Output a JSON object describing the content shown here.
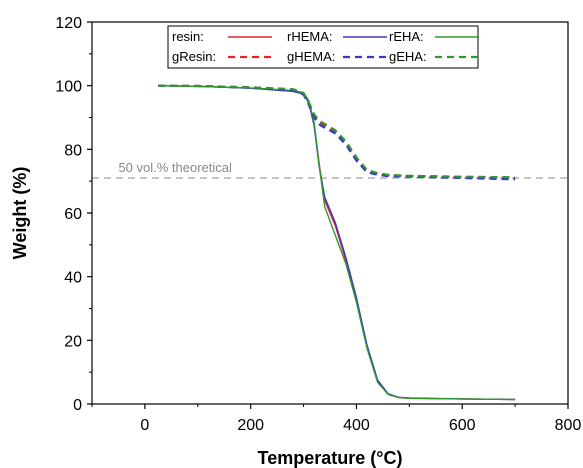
{
  "chart_data": {
    "type": "line",
    "title": "",
    "xlabel": "Temperature (°C)",
    "ylabel": "Weight (%)",
    "xlim": [
      -100,
      800
    ],
    "ylim": [
      0,
      120
    ],
    "x_ticks": [
      0,
      200,
      400,
      600,
      800
    ],
    "y_ticks": [
      0,
      20,
      40,
      60,
      80,
      100,
      120
    ],
    "grid": false,
    "legend_position": "top-center",
    "reference_line": {
      "y": 71,
      "label": "50 vol.% theoretical",
      "style": "dashed",
      "color": "#a0a0a0"
    },
    "series": [
      {
        "name": "resin:",
        "color": "#e8212a",
        "dash": "solid",
        "x": [
          25,
          100,
          200,
          280,
          300,
          310,
          320,
          330,
          340,
          360,
          380,
          400,
          420,
          440,
          460,
          480,
          500,
          600,
          700
        ],
        "y": [
          100,
          99.8,
          99.2,
          98.4,
          97.6,
          95,
          88,
          75,
          64,
          56,
          45,
          33,
          18,
          7,
          3,
          2,
          1.8,
          1.6,
          1.4
        ]
      },
      {
        "name": "rHEMA:",
        "color": "#3a37c8",
        "dash": "solid",
        "x": [
          25,
          100,
          200,
          280,
          300,
          310,
          320,
          330,
          340,
          360,
          380,
          400,
          420,
          440,
          460,
          480,
          500,
          600,
          700
        ],
        "y": [
          100,
          99.8,
          99.2,
          98.2,
          97.4,
          94.6,
          87.5,
          74,
          65,
          57,
          46,
          33.5,
          18.5,
          7.5,
          3.2,
          2.1,
          1.9,
          1.6,
          1.4
        ]
      },
      {
        "name": "rEHA:",
        "color": "#2e9a2e",
        "dash": "solid",
        "x": [
          25,
          100,
          200,
          280,
          300,
          310,
          320,
          330,
          340,
          360,
          380,
          400,
          420,
          440,
          460,
          480,
          500,
          600,
          700
        ],
        "y": [
          100,
          99.8,
          99.3,
          98.5,
          97.8,
          95.2,
          88.5,
          74.5,
          62,
          53,
          44,
          32,
          17.5,
          6.8,
          3,
          2,
          1.8,
          1.6,
          1.4
        ]
      },
      {
        "name": "gResin:",
        "color": "#e8212a",
        "dash": "dashed",
        "x": [
          25,
          100,
          200,
          280,
          300,
          310,
          320,
          330,
          340,
          360,
          380,
          400,
          420,
          440,
          460,
          500,
          600,
          700
        ],
        "y": [
          100,
          99.9,
          99.5,
          98.8,
          97.5,
          94.5,
          90.5,
          88.5,
          87.5,
          85.5,
          82,
          77,
          73,
          72.2,
          71.8,
          71.6,
          71.2,
          71
        ]
      },
      {
        "name": "gHEMA:",
        "color": "#3a37c8",
        "dash": "dashed",
        "x": [
          25,
          100,
          200,
          280,
          300,
          310,
          320,
          330,
          340,
          360,
          380,
          400,
          420,
          440,
          460,
          500,
          600,
          700
        ],
        "y": [
          100,
          99.9,
          99.4,
          98.6,
          97.2,
          94,
          90,
          87.8,
          86.8,
          85,
          81.5,
          76.5,
          72.8,
          72,
          71.6,
          71.4,
          71,
          70.6
        ]
      },
      {
        "name": "gEHA:",
        "color": "#2e9a2e",
        "dash": "dashed",
        "x": [
          25,
          100,
          200,
          280,
          300,
          310,
          320,
          330,
          340,
          360,
          380,
          400,
          420,
          440,
          460,
          500,
          600,
          700
        ],
        "y": [
          100,
          99.9,
          99.5,
          98.9,
          97.7,
          94.8,
          91,
          89,
          88,
          86,
          82.5,
          77.5,
          73.5,
          72.5,
          72,
          71.7,
          71.4,
          71.2
        ]
      }
    ]
  }
}
